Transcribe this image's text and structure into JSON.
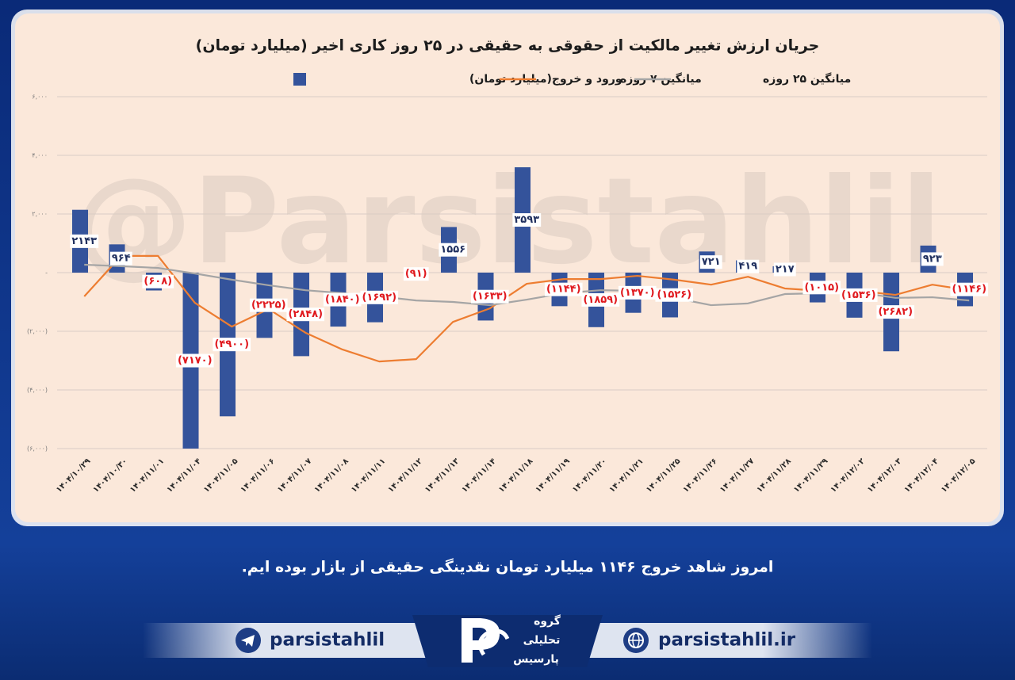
{
  "chart_data": {
    "type": "bar",
    "title": "جریان ارزش تغییر مالکیت از حقوقی به حقیقی در ۲۵ روز کاری اخیر (میلیارد تومان)",
    "categories": [
      "۱۴۰۴/۱۰/۲۹",
      "۱۴۰۴/۱۰/۳۰",
      "۱۴۰۴/۱۱/۰۱",
      "۱۴۰۴/۱۱/۰۴",
      "۱۴۰۴/۱۱/۰۵",
      "۱۴۰۴/۱۱/۰۶",
      "۱۴۰۴/۱۱/۰۷",
      "۱۴۰۴/۱۱/۰۸",
      "۱۴۰۴/۱۱/۱۱",
      "۱۴۰۴/۱۱/۱۲",
      "۱۴۰۴/۱۱/۱۳",
      "۱۴۰۴/۱۱/۱۴",
      "۱۴۰۴/۱۱/۱۸",
      "۱۴۰۴/۱۱/۱۹",
      "۱۴۰۴/۱۱/۲۰",
      "۱۴۰۴/۱۱/۲۱",
      "۱۴۰۴/۱۱/۲۵",
      "۱۴۰۴/۱۱/۲۶",
      "۱۴۰۴/۱۱/۲۷",
      "۱۴۰۴/۱۱/۲۸",
      "۱۴۰۴/۱۱/۲۹",
      "۱۴۰۴/۱۲/۰۲",
      "۱۴۰۴/۱۲/۰۳",
      "۱۴۰۴/۱۲/۰۴",
      "۱۴۰۴/۱۲/۰۵"
    ],
    "series": [
      {
        "name": "ورود و خروج(میلیارد تومان)",
        "type": "bar",
        "color": "#34539b",
        "values": [
          2143,
          964,
          -608,
          -7170,
          -4900,
          -2225,
          -2848,
          -1840,
          -1692,
          -91,
          1556,
          -1633,
          3593,
          -1144,
          -1859,
          -1370,
          -1526,
          721,
          419,
          217,
          -1015,
          -1536,
          -2682,
          923,
          -1146
        ],
        "value_labels": [
          "۲۱۴۳",
          "۹۶۴",
          "(۶۰۸)",
          "(۷۱۷۰)",
          "(۴۹۰۰)",
          "(۲۲۲۵)",
          "(۲۸۴۸)",
          "(۱۸۴۰)",
          "(۱۶۹۲)",
          "(۹۱)",
          "۱۵۵۶",
          "(۱۶۳۳)",
          "۳۵۹۳",
          "(۱۱۴۴)",
          "(۱۸۵۹)",
          "(۱۳۷۰)",
          "(۱۵۲۶)",
          "۷۲۱",
          "۴۱۹",
          "۲۱۷",
          "(۱۰۱۵)",
          "(۱۵۳۶)",
          "(۲۶۸۲)",
          "۹۲۳",
          "(۱۱۴۶)"
        ]
      },
      {
        "name": "میانگین ۷ روزه",
        "type": "line",
        "color": "#ed7d31",
        "values": [
          -810,
          570,
          570,
          -1030,
          -1840,
          -1240,
          -2050,
          -2620,
          -3030,
          -2950,
          -1680,
          -1220,
          -380,
          -220,
          -220,
          -110,
          -240,
          -410,
          -140,
          -540,
          -620,
          -620,
          -760,
          -410,
          -600
        ]
      },
      {
        "name": "میانگین ۲۵ روزه",
        "type": "line",
        "color": "#a5a5a5",
        "values": [
          270,
          220,
          160,
          -30,
          -240,
          -430,
          -600,
          -700,
          -810,
          -950,
          -1000,
          -1110,
          -920,
          -700,
          -600,
          -620,
          -860,
          -1110,
          -1050,
          -730,
          -700,
          -680,
          -860,
          -840,
          -950
        ]
      }
    ],
    "ylim": [
      -6000,
      6000
    ],
    "yticks": [
      {
        "value": -6000,
        "label": "(۶,۰۰۰)"
      },
      {
        "value": -4000,
        "label": "(۴,۰۰۰)"
      },
      {
        "value": -2000,
        "label": "(۲,۰۰۰)"
      },
      {
        "value": 0,
        "label": "-"
      },
      {
        "value": 2000,
        "label": "۲,۰۰۰"
      },
      {
        "value": 4000,
        "label": "۴,۰۰۰"
      },
      {
        "value": 6000,
        "label": "۶,۰۰۰"
      }
    ],
    "grid": true
  },
  "watermark": "@Parsistahlil",
  "caption": "امروز شاهد خروج ۱۱۴۶ میلیارد تومان نقدینگی حقیقی از بازار بوده ایم.",
  "footer": {
    "telegram": "parsistahlil",
    "website": "parsistahlil.ir",
    "logo_lines": [
      "گروه",
      "تحلیلی",
      "پارسیس"
    ]
  }
}
